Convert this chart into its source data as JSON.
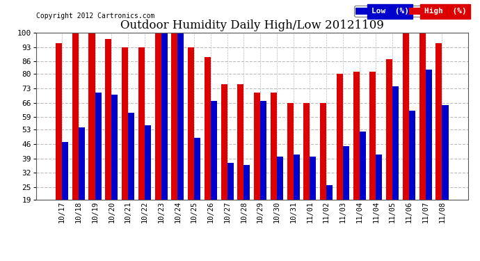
{
  "title": "Outdoor Humidity Daily High/Low 20121109",
  "copyright": "Copyright 2012 Cartronics.com",
  "dates": [
    "10/17",
    "10/18",
    "10/19",
    "10/20",
    "10/21",
    "10/22",
    "10/23",
    "10/24",
    "10/25",
    "10/26",
    "10/27",
    "10/28",
    "10/29",
    "10/30",
    "10/31",
    "11/01",
    "11/02",
    "11/03",
    "11/04",
    "11/04",
    "11/05",
    "11/06",
    "11/07",
    "11/08"
  ],
  "high": [
    95,
    100,
    100,
    97,
    93,
    93,
    100,
    100,
    93,
    88,
    75,
    75,
    71,
    71,
    66,
    66,
    66,
    80,
    81,
    81,
    87,
    100,
    100,
    95
  ],
  "low": [
    47,
    54,
    71,
    70,
    61,
    55,
    100,
    100,
    49,
    67,
    37,
    36,
    67,
    40,
    41,
    40,
    26,
    45,
    52,
    41,
    74,
    62,
    82,
    65
  ],
  "high_color": "#dd0000",
  "low_color": "#0000cc",
  "bg_color": "#ffffff",
  "grid_color": "#bbbbbb",
  "yticks": [
    19,
    25,
    32,
    39,
    46,
    53,
    59,
    66,
    73,
    80,
    86,
    93,
    100
  ],
  "ymin": 19,
  "ymax": 100,
  "bar_width": 0.38,
  "title_fontsize": 12,
  "legend_low_label": "Low  (%)",
  "legend_high_label": "High  (%)"
}
